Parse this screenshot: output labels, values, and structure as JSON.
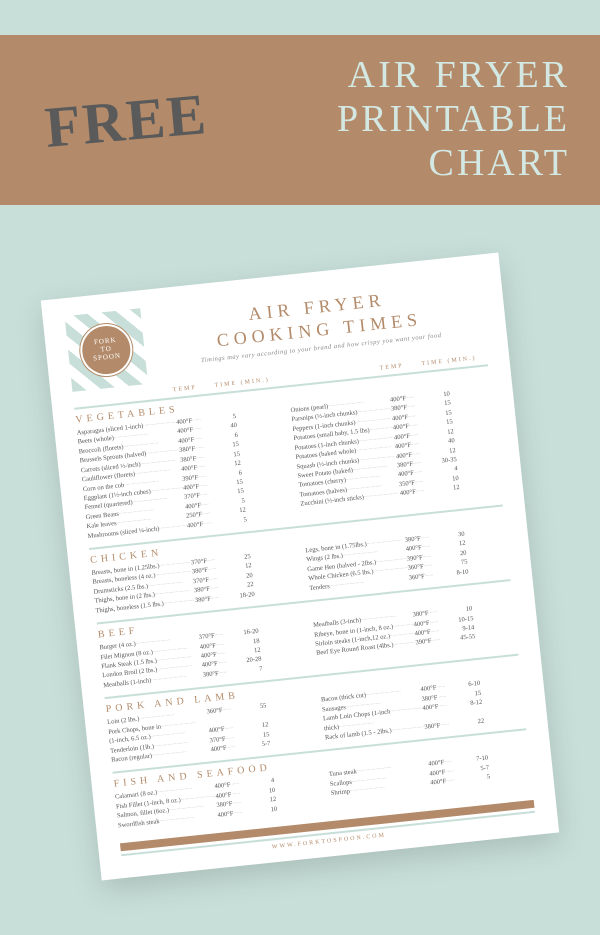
{
  "banner": {
    "free": "FREE",
    "title_l1": "AIR FRYER",
    "title_l2": "PRINTABLE",
    "title_l3": "CHART"
  },
  "colors": {
    "background": "#c8dfd9",
    "banner_bg": "#b38b6a",
    "banner_title": "#d4e8e3",
    "free_text": "#5a5a5a",
    "accent": "#b38b6a",
    "divider": "#c8dfd9",
    "text": "#555555"
  },
  "chart": {
    "logo": "FORK\nTO\nSPOON",
    "title_l1": "AIR FRYER",
    "title_l2": "COOKING TIMES",
    "subtitle": "Timings may vary according to your brand and how crispy you want your food",
    "temp_label": "TEMP",
    "time_label": "TIME (MIN.)",
    "footer_url": "WWW.FORKTOSPOON.COM"
  },
  "sections": [
    {
      "title": "VEGETABLES",
      "left": [
        {
          "f": "Asparagus (sliced 1-inch)",
          "t": "400°F",
          "m": "5"
        },
        {
          "f": "Beets (whole)",
          "t": "400°F",
          "m": "40"
        },
        {
          "f": "Broccoli (florets)",
          "t": "400°F",
          "m": "6"
        },
        {
          "f": "Brussels Sprouts (halved)",
          "t": "380°F",
          "m": "15"
        },
        {
          "f": "Carrots (sliced ½-inch)",
          "t": "380°F",
          "m": "15"
        },
        {
          "f": "Cauliflower (florets)",
          "t": "400°F",
          "m": "12"
        },
        {
          "f": "Corn on the cob",
          "t": "390°F",
          "m": "6"
        },
        {
          "f": "Eggplant (1½-inch cubes)",
          "t": "400°F",
          "m": "15"
        },
        {
          "f": "Fennel (quartered)",
          "t": "370°F",
          "m": "15"
        },
        {
          "f": "Green Beans",
          "t": "400°F",
          "m": "5"
        },
        {
          "f": "Kale leaves",
          "t": "250°F",
          "m": "12"
        },
        {
          "f": "Mushrooms (sliced ¼-inch)",
          "t": "400°F",
          "m": "5"
        }
      ],
      "right": [
        {
          "f": "Onions (pearl)",
          "t": "400°F",
          "m": "10"
        },
        {
          "f": "Parsnips (½-inch chunks)",
          "t": "380°F",
          "m": "15"
        },
        {
          "f": "Peppers (1-inch chunks)",
          "t": "400°F",
          "m": "15"
        },
        {
          "f": "Potatoes (small baby, 1.5 lbs)",
          "t": "400°F",
          "m": "15"
        },
        {
          "f": "Potatoes (1-inch chunks)",
          "t": "400°F",
          "m": "12"
        },
        {
          "f": "Potatoes (baked whole)",
          "t": "400°F",
          "m": "40"
        },
        {
          "f": "Squash (½-inch chunks)",
          "t": "400°F",
          "m": "12"
        },
        {
          "f": "Sweet Potato (baked)",
          "t": "380°F",
          "m": "30-35"
        },
        {
          "f": "Tomatoes (cherry)",
          "t": "400°F",
          "m": "4"
        },
        {
          "f": "Tomatoes (halves)",
          "t": "350°F",
          "m": "10"
        },
        {
          "f": "Zucchini (½-inch sticks)",
          "t": "400°F",
          "m": "12"
        }
      ]
    },
    {
      "title": "CHICKEN",
      "left": [
        {
          "f": "Breasts, bone in (1.25lbs.)",
          "t": "370°F",
          "m": "25"
        },
        {
          "f": "Breasts, boneless (4 oz.)",
          "t": "380°F",
          "m": "12"
        },
        {
          "f": "Drumsticks (2.5 lbs.)",
          "t": "370°F",
          "m": "20"
        },
        {
          "f": "Thighs, bone in (2 lbs.)",
          "t": "380°F",
          "m": "22"
        },
        {
          "f": "Thighs, boneless (1.5 lbs.)",
          "t": "380°F",
          "m": "18-20"
        }
      ],
      "right": [
        {
          "f": "Legs, bone in (1.75lbs.)",
          "t": "380°F",
          "m": "30"
        },
        {
          "f": "Wings (2 lbs.)",
          "t": "400°F",
          "m": "12"
        },
        {
          "f": "Game Hen (halved - 2lbs.)",
          "t": "390°F",
          "m": "20"
        },
        {
          "f": "Whole Chicken (6.5 lbs.)",
          "t": "360°F",
          "m": "75"
        },
        {
          "f": "Tenders",
          "t": "360°F",
          "m": "8-10"
        }
      ]
    },
    {
      "title": "BEEF",
      "left": [
        {
          "f": "Burger (4 oz.)",
          "t": "370°F",
          "m": "16-20"
        },
        {
          "f": "Filet Mignon (8 oz.)",
          "t": "400°F",
          "m": "18"
        },
        {
          "f": "Flank Steak (1.5 lbs.)",
          "t": "400°F",
          "m": "12"
        },
        {
          "f": "London Broil (2 lbs.)",
          "t": "400°F",
          "m": "20-28"
        },
        {
          "f": "Meatballs (1-inch)",
          "t": "380°F",
          "m": "7"
        }
      ],
      "right": [
        {
          "f": "Meatballs (3-inch)",
          "t": "380°F",
          "m": "10"
        },
        {
          "f": "Ribeye, bone in (1-inch, 8 oz.)",
          "t": "400°F",
          "m": "10-15"
        },
        {
          "f": "Sirloin steaks (1-inch,12 oz.)",
          "t": "400°F",
          "m": "9-14"
        },
        {
          "f": "Beef Eye Round Roast (4lbs.)",
          "t": "390°F",
          "m": "45-55"
        }
      ]
    },
    {
      "title": "PORK AND LAMB",
      "left": [
        {
          "f": "Loin (2 lbs.)",
          "t": "360°F",
          "m": "55"
        },
        {
          "f": "Pork Chops, bone in",
          "t": "",
          "m": ""
        },
        {
          "f": "(1-inch, 6.5 oz.)",
          "t": "400°F",
          "m": "12"
        },
        {
          "f": "Tenderloin (1lb.)",
          "t": "370°F",
          "m": "15"
        },
        {
          "f": "Bacon (regular)",
          "t": "400°F",
          "m": "5-7"
        }
      ],
      "right": [
        {
          "f": "Bacon (thick cut)",
          "t": "400°F",
          "m": "6-10"
        },
        {
          "f": "Sausages",
          "t": "380°F",
          "m": "15"
        },
        {
          "f": "Lamb Loin Chops (1-inch",
          "t": "400°F",
          "m": "8-12"
        },
        {
          "f": "thick)",
          "t": "",
          "m": ""
        },
        {
          "f": "Rack of lamb (1.5 - 2lbs.)",
          "t": "380°F",
          "m": "22"
        }
      ]
    },
    {
      "title": "FISH AND SEAFOOD",
      "left": [
        {
          "f": "Calamari (8 oz.)",
          "t": "400°F",
          "m": "4"
        },
        {
          "f": "Fish Fillet (1-inch, 8 oz.)",
          "t": "400°F",
          "m": "10"
        },
        {
          "f": "Salmon, fillet (6oz.)",
          "t": "380°F",
          "m": "12"
        },
        {
          "f": "Swordfish steak",
          "t": "400°F",
          "m": "10"
        }
      ],
      "right": [
        {
          "f": "Tuna steak",
          "t": "400°F",
          "m": "7-10"
        },
        {
          "f": "Scallops",
          "t": "400°F",
          "m": "5-7"
        },
        {
          "f": "Shrimp",
          "t": "400°F",
          "m": "5"
        }
      ]
    }
  ]
}
